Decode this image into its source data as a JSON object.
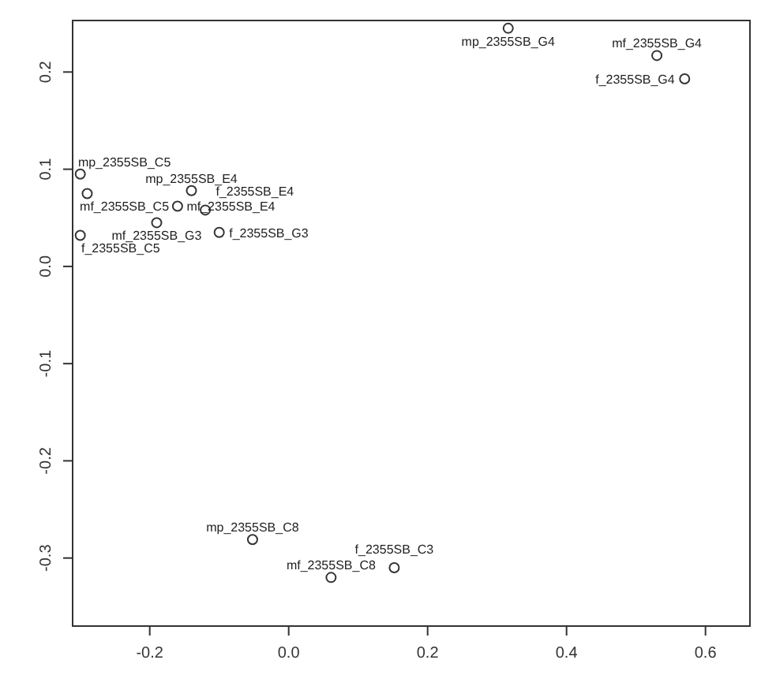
{
  "chart_data": {
    "type": "scatter",
    "x": [
      0.316,
      0.53,
      0.57,
      -0.052,
      0.061,
      0.152,
      -0.3,
      -0.29,
      -0.14,
      -0.16,
      -0.12,
      -0.19,
      -0.1,
      -0.3
    ],
    "values": [
      0.245,
      0.217,
      0.193,
      -0.281,
      -0.32,
      -0.31,
      0.095,
      0.075,
      0.078,
      0.062,
      0.058,
      0.045,
      0.035,
      0.032
    ],
    "value_labels": [
      "mp_2355SB_G4",
      "mf_2355SB_G4",
      "f_2355SB_G4",
      "mp_2355SB_C8",
      "mf_2355SB_C8",
      "f_2355SB_C3",
      "mp_2355SB_C5",
      "mf_2355SB_C5",
      "mp_2355SB_E4",
      "mf_2355SB_E4",
      "f_2355SB_E4",
      "mf_2355SB_G3",
      "f_2355SB_G3",
      "f_2355SB_C5"
    ],
    "color": "#333333",
    "marker": "circle",
    "xlim": [
      -0.311,
      0.664
    ],
    "ylim": [
      -0.37,
      0.253
    ],
    "xticks": [
      {
        "value": -0.2,
        "label": "-0.2"
      },
      {
        "value": 0,
        "label": "0.0"
      },
      {
        "value": 0.2,
        "label": "0.2"
      },
      {
        "value": 0.4,
        "label": "0.4"
      },
      {
        "value": 0.6,
        "label": "0.6"
      }
    ],
    "yticks": [
      {
        "value": -0.3,
        "label": "-0.3"
      },
      {
        "value": -0.2,
        "label": "-0.2"
      },
      {
        "value": -0.1,
        "label": "-0.1"
      },
      {
        "value": 0,
        "label": "0.0"
      },
      {
        "value": 0.1,
        "label": "0.1"
      },
      {
        "value": 0.2,
        "label": "0.2"
      }
    ],
    "grid": false
  }
}
